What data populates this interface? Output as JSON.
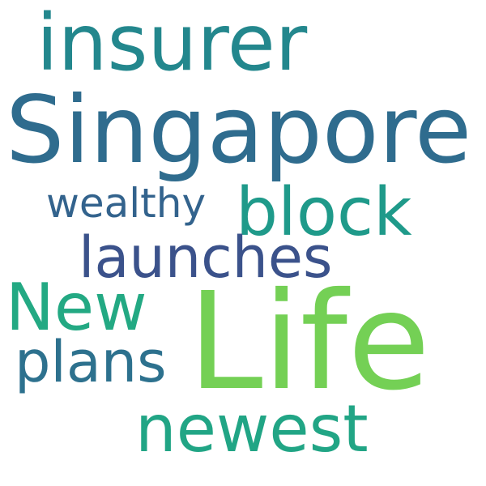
{
  "words": [
    {
      "text": "insurer",
      "color": "#23878d"
    },
    {
      "text": "Singapore",
      "color": "#2f6c8e"
    },
    {
      "text": "wealthy",
      "color": "#33638d"
    },
    {
      "text": "block",
      "color": "#1f9a8a"
    },
    {
      "text": "launches",
      "color": "#3b528b"
    },
    {
      "text": "New",
      "color": "#23a983"
    },
    {
      "text": "Life",
      "color": "#74d055"
    },
    {
      "text": "plans",
      "color": "#2d718e"
    },
    {
      "text": "newest",
      "color": "#21a585"
    }
  ]
}
